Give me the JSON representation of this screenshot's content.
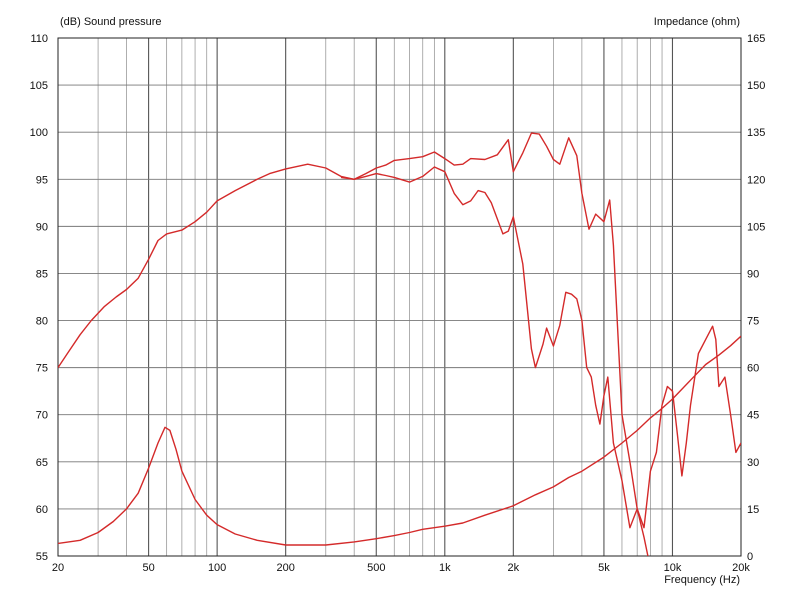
{
  "chart_data": {
    "type": "line",
    "left_axis_label": "(dB)  Sound pressure",
    "right_axis_label": "Impedance  (ohm)",
    "xlabel": "Frequency  (Hz)",
    "x_scale": "log",
    "xlim": [
      20,
      20000
    ],
    "ylim_left": [
      55,
      110
    ],
    "ylim_right": [
      0,
      165
    ],
    "grid": true,
    "line_color": "#d42a2a",
    "x_tick_labels": [
      {
        "value": 20,
        "label": "20"
      },
      {
        "value": 50,
        "label": "50"
      },
      {
        "value": 100,
        "label": "100"
      },
      {
        "value": 200,
        "label": "200"
      },
      {
        "value": 500,
        "label": "500"
      },
      {
        "value": 1000,
        "label": "1k"
      },
      {
        "value": 2000,
        "label": "2k"
      },
      {
        "value": 5000,
        "label": "5k"
      },
      {
        "value": 10000,
        "label": "10k"
      },
      {
        "value": 20000,
        "label": "20k"
      }
    ],
    "y_left_ticks": [
      55,
      60,
      65,
      70,
      75,
      80,
      85,
      90,
      95,
      100,
      105,
      110
    ],
    "y_right_ticks": [
      0,
      15,
      30,
      45,
      60,
      75,
      90,
      105,
      120,
      135,
      150,
      165
    ],
    "series": [
      {
        "id": "spl-on-axis",
        "axis": "left",
        "points": [
          [
            20,
            75
          ],
          [
            22,
            76.5
          ],
          [
            25,
            78.5
          ],
          [
            28,
            80
          ],
          [
            32,
            81.5
          ],
          [
            36,
            82.5
          ],
          [
            40,
            83.3
          ],
          [
            45,
            84.5
          ],
          [
            50,
            86.5
          ],
          [
            55,
            88.5
          ],
          [
            60,
            89.2
          ],
          [
            70,
            89.6
          ],
          [
            80,
            90.5
          ],
          [
            90,
            91.5
          ],
          [
            100,
            92.7
          ],
          [
            120,
            93.8
          ],
          [
            150,
            95
          ],
          [
            170,
            95.6
          ],
          [
            200,
            96.1
          ],
          [
            250,
            96.6
          ],
          [
            300,
            96.2
          ],
          [
            350,
            95.3
          ],
          [
            400,
            95
          ],
          [
            450,
            95.6
          ],
          [
            500,
            96.2
          ],
          [
            550,
            96.5
          ],
          [
            600,
            97
          ],
          [
            700,
            97.2
          ],
          [
            800,
            97.4
          ],
          [
            900,
            97.9
          ],
          [
            1000,
            97.2
          ],
          [
            1100,
            96.5
          ],
          [
            1200,
            96.6
          ],
          [
            1300,
            97.2
          ],
          [
            1500,
            97.1
          ],
          [
            1700,
            97.6
          ],
          [
            1900,
            99.2
          ],
          [
            2000,
            95.8
          ],
          [
            2200,
            97.8
          ],
          [
            2400,
            99.9
          ],
          [
            2600,
            99.8
          ],
          [
            2800,
            98.5
          ],
          [
            3000,
            97.1
          ],
          [
            3200,
            96.6
          ],
          [
            3500,
            99.4
          ],
          [
            3800,
            97.5
          ],
          [
            4000,
            93.5
          ],
          [
            4300,
            89.7
          ],
          [
            4600,
            91.3
          ],
          [
            5000,
            90.5
          ],
          [
            5300,
            92.8
          ],
          [
            5500,
            88
          ],
          [
            6000,
            70
          ],
          [
            6500,
            65
          ],
          [
            7000,
            60
          ],
          [
            7500,
            58
          ],
          [
            8000,
            64
          ],
          [
            8500,
            66
          ],
          [
            9000,
            71
          ],
          [
            9500,
            73
          ],
          [
            10000,
            72.5
          ],
          [
            10500,
            68
          ],
          [
            11000,
            63.5
          ],
          [
            11500,
            67
          ],
          [
            12000,
            71
          ],
          [
            13000,
            76.5
          ],
          [
            14000,
            78
          ],
          [
            15000,
            79.4
          ],
          [
            15500,
            78
          ],
          [
            16000,
            73
          ],
          [
            17000,
            74
          ],
          [
            18000,
            70
          ],
          [
            19000,
            66
          ],
          [
            20000,
            67
          ]
        ]
      },
      {
        "id": "spl-off-axis",
        "axis": "left",
        "points": [
          [
            350,
            95.2
          ],
          [
            400,
            95
          ],
          [
            450,
            95.3
          ],
          [
            500,
            95.6
          ],
          [
            550,
            95.4
          ],
          [
            600,
            95.2
          ],
          [
            700,
            94.7
          ],
          [
            800,
            95.3
          ],
          [
            900,
            96.3
          ],
          [
            1000,
            95.8
          ],
          [
            1100,
            93.5
          ],
          [
            1200,
            92.3
          ],
          [
            1300,
            92.7
          ],
          [
            1400,
            93.8
          ],
          [
            1500,
            93.6
          ],
          [
            1600,
            92.5
          ],
          [
            1800,
            89.2
          ],
          [
            1900,
            89.5
          ],
          [
            2000,
            91
          ],
          [
            2200,
            86
          ],
          [
            2400,
            77
          ],
          [
            2500,
            75
          ],
          [
            2700,
            77.5
          ],
          [
            2800,
            79.2
          ],
          [
            3000,
            77.3
          ],
          [
            3200,
            79.5
          ],
          [
            3400,
            83
          ],
          [
            3600,
            82.8
          ],
          [
            3800,
            82.3
          ],
          [
            4000,
            80
          ],
          [
            4200,
            75
          ],
          [
            4400,
            74
          ],
          [
            4600,
            71
          ],
          [
            4800,
            69
          ],
          [
            5000,
            72
          ],
          [
            5200,
            74
          ],
          [
            5500,
            67
          ],
          [
            6000,
            63
          ],
          [
            6500,
            58
          ],
          [
            7000,
            60
          ],
          [
            7500,
            57
          ],
          [
            7800,
            55
          ]
        ]
      },
      {
        "id": "impedance",
        "axis": "right",
        "points": [
          [
            20,
            4
          ],
          [
            25,
            5
          ],
          [
            30,
            7.5
          ],
          [
            35,
            11
          ],
          [
            40,
            15
          ],
          [
            45,
            20
          ],
          [
            50,
            28
          ],
          [
            55,
            36
          ],
          [
            59,
            41
          ],
          [
            62,
            40
          ],
          [
            66,
            34
          ],
          [
            70,
            27
          ],
          [
            80,
            18
          ],
          [
            90,
            13
          ],
          [
            100,
            10
          ],
          [
            120,
            7
          ],
          [
            150,
            5
          ],
          [
            200,
            3.5
          ],
          [
            300,
            3.5
          ],
          [
            400,
            4.5
          ],
          [
            500,
            5.5
          ],
          [
            600,
            6.5
          ],
          [
            700,
            7.5
          ],
          [
            800,
            8.5
          ],
          [
            1000,
            9.5
          ],
          [
            1200,
            10.5
          ],
          [
            1500,
            13
          ],
          [
            2000,
            16
          ],
          [
            2500,
            19.5
          ],
          [
            3000,
            22
          ],
          [
            3500,
            25
          ],
          [
            4000,
            27
          ],
          [
            5000,
            31.5
          ],
          [
            6000,
            36
          ],
          [
            7000,
            40
          ],
          [
            8000,
            44
          ],
          [
            9000,
            47
          ],
          [
            10000,
            50
          ],
          [
            12000,
            56
          ],
          [
            14000,
            61
          ],
          [
            16000,
            64
          ],
          [
            18000,
            67
          ],
          [
            20000,
            70
          ]
        ]
      }
    ]
  }
}
